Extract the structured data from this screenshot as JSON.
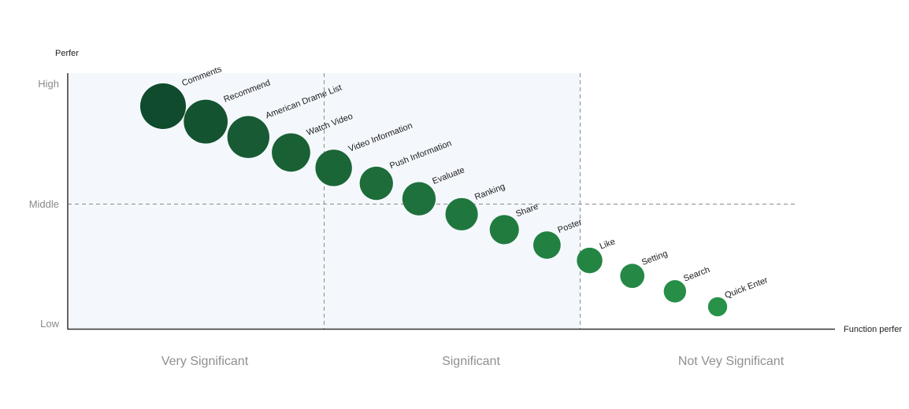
{
  "chart_data": {
    "type": "scatter",
    "title": "",
    "ylabel": "Perfer",
    "xlabel": "Function perfer",
    "y_ticks": [
      "High",
      "Middle",
      "Low"
    ],
    "categories": [
      "Very Significant",
      "Significant",
      "Not Vey Significant"
    ],
    "grid": false,
    "points": [
      {
        "label": "Comments",
        "x": 1,
        "y": 9.0,
        "size": 1.0,
        "color": "#0f4b2c"
      },
      {
        "label": "Recommend",
        "x": 2,
        "y": 8.4,
        "size": 0.96,
        "color": "#14532f"
      },
      {
        "label": "American Drame List",
        "x": 3,
        "y": 7.8,
        "size": 0.92,
        "color": "#185a33"
      },
      {
        "label": "Watch Video",
        "x": 4,
        "y": 7.2,
        "size": 0.84,
        "color": "#1a6035"
      },
      {
        "label": "Video Information",
        "x": 5,
        "y": 6.6,
        "size": 0.8,
        "color": "#1b6637"
      },
      {
        "label": "Push Information",
        "x": 6,
        "y": 6.0,
        "size": 0.73,
        "color": "#1d6c39"
      },
      {
        "label": "Evaluate",
        "x": 7,
        "y": 5.4,
        "size": 0.73,
        "color": "#1e713c"
      },
      {
        "label": "Ranking",
        "x": 8,
        "y": 4.8,
        "size": 0.71,
        "color": "#20773e"
      },
      {
        "label": "Share",
        "x": 9,
        "y": 4.2,
        "size": 0.64,
        "color": "#217b3f"
      },
      {
        "label": "Poster",
        "x": 10,
        "y": 3.6,
        "size": 0.6,
        "color": "#228041"
      },
      {
        "label": "Like",
        "x": 11,
        "y": 3.0,
        "size": 0.56,
        "color": "#248543"
      },
      {
        "label": "Setting",
        "x": 12,
        "y": 2.4,
        "size": 0.53,
        "color": "#258945"
      },
      {
        "label": "Search",
        "x": 13,
        "y": 1.8,
        "size": 0.49,
        "color": "#278e47"
      },
      {
        "label": "Quick Enter",
        "x": 14,
        "y": 1.2,
        "size": 0.42,
        "color": "#289249"
      }
    ]
  }
}
